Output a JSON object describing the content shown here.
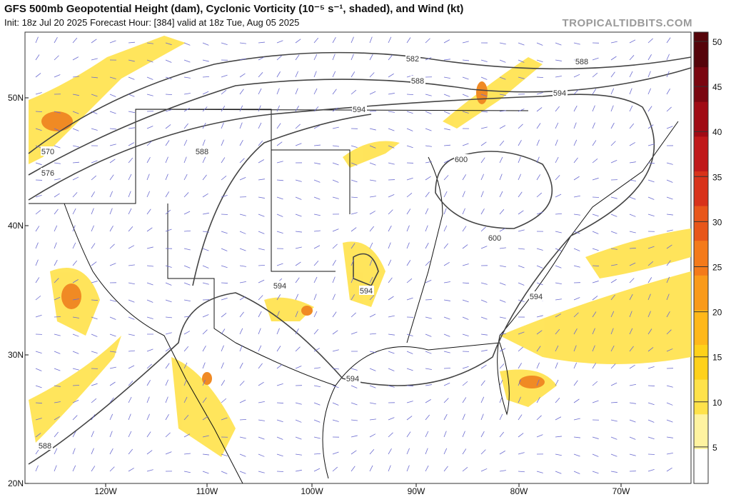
{
  "header": {
    "title": "GFS 500mb Geopotential Height (dam), Cyclonic Vorticity (10⁻⁵ s⁻¹, shaded), and Wind (kt)",
    "subtitle": "Init: 18z Jul 20 2025   Forecast Hour: [384]   valid at 18z Tue, Aug 05 2025",
    "watermark": "TROPICALTIDBITS.COM"
  },
  "map": {
    "latitude_labels": [
      "50N",
      "40N",
      "30N",
      "20N"
    ],
    "longitude_labels": [
      "120W",
      "110W",
      "100W",
      "90W",
      "80W",
      "70W"
    ],
    "contour_labels": [
      "582",
      "588",
      "588",
      "594",
      "594",
      "588",
      "570",
      "576",
      "600",
      "600",
      "594",
      "594",
      "594",
      "594",
      "588"
    ]
  },
  "colorbar": {
    "labels": [
      "50",
      "45",
      "40",
      "35",
      "30",
      "25",
      "20",
      "15",
      "10",
      "5"
    ]
  }
}
